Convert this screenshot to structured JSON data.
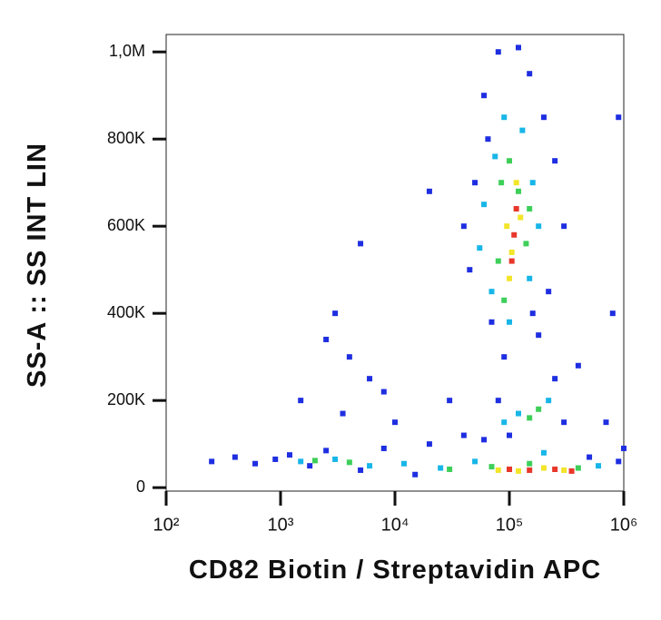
{
  "chart_data": {
    "type": "scatter",
    "x_label": "CD82 Biotin / Streptavidin APC",
    "y_label": "SS-A :: SS INT LIN",
    "xscale": "log",
    "xlim": [
      100,
      1000000
    ],
    "xticks": [
      {
        "value": 100,
        "label": "10²"
      },
      {
        "value": 1000,
        "label": "10³"
      },
      {
        "value": 10000,
        "label": "10⁴"
      },
      {
        "value": 100000,
        "label": "10⁵"
      },
      {
        "value": 1000000,
        "label": "10⁶"
      }
    ],
    "ylim": [
      -8000,
      1040000
    ],
    "yticks": [
      0,
      {
        "value": 200000,
        "label": "200K"
      },
      {
        "value": 400000,
        "label": "400K"
      },
      {
        "value": 600000,
        "label": "600K"
      },
      {
        "value": 800000,
        "label": "800K"
      },
      {
        "value": 1000000,
        "label": "1,0M"
      }
    ],
    "series": [
      {
        "color": "#1e2ee0",
        "x": [
          60000,
          150000,
          80000,
          200000,
          50000,
          250000,
          45000,
          220000,
          70000,
          180000,
          90000,
          300000,
          40000,
          120000,
          65000,
          160000,
          20000,
          5000,
          3000,
          2500,
          4000,
          6000,
          1500,
          8000,
          30000,
          400000,
          800000,
          900000,
          700000,
          10000,
          3500,
          250,
          400,
          600,
          900,
          1200,
          1800,
          2500,
          5000,
          8000,
          15000,
          20000,
          40000,
          60000,
          900000,
          1000000,
          500000,
          80000,
          250000,
          300000,
          100000
        ],
        "values": [
          900000,
          950000,
          1000000,
          850000,
          700000,
          750000,
          500000,
          450000,
          380000,
          350000,
          300000,
          600000,
          600000,
          1010000,
          800000,
          400000,
          680000,
          560000,
          400000,
          340000,
          300000,
          250000,
          200000,
          220000,
          200000,
          280000,
          400000,
          850000,
          150000,
          150000,
          170000,
          60000,
          70000,
          55000,
          65000,
          75000,
          50000,
          85000,
          40000,
          90000,
          30000,
          100000,
          120000,
          110000,
          60000,
          90000,
          70000,
          200000,
          250000,
          150000,
          120000
        ]
      },
      {
        "color": "#18b6e8",
        "x": [
          70000,
          150000,
          60000,
          160000,
          90000,
          130000,
          100000,
          75000,
          180000,
          55000,
          1500,
          3000,
          6000,
          12000,
          25000,
          50000,
          200000,
          600000,
          120000,
          220000,
          90000
        ],
        "values": [
          450000,
          480000,
          650000,
          700000,
          850000,
          820000,
          380000,
          760000,
          600000,
          550000,
          60000,
          65000,
          50000,
          55000,
          45000,
          60000,
          80000,
          50000,
          170000,
          200000,
          150000
        ]
      },
      {
        "color": "#3ecf5a",
        "x": [
          80000,
          140000,
          100000,
          120000,
          85000,
          150000,
          90000,
          2000,
          4000,
          30000,
          70000,
          150000,
          400000,
          150000,
          180000
        ],
        "values": [
          520000,
          560000,
          750000,
          680000,
          700000,
          640000,
          430000,
          62000,
          58000,
          42000,
          48000,
          55000,
          45000,
          160000,
          180000
        ]
      },
      {
        "color": "#f2e52a",
        "x": [
          95000,
          125000,
          105000,
          115000,
          100000,
          80000,
          200000,
          300000,
          120000
        ],
        "values": [
          600000,
          620000,
          540000,
          700000,
          480000,
          40000,
          45000,
          40000,
          38000
        ]
      },
      {
        "color": "#e8372a",
        "x": [
          110000,
          105000,
          115000,
          150000,
          250000,
          350000,
          100000
        ],
        "values": [
          580000,
          520000,
          640000,
          40000,
          42000,
          38000,
          42000
        ]
      }
    ]
  }
}
